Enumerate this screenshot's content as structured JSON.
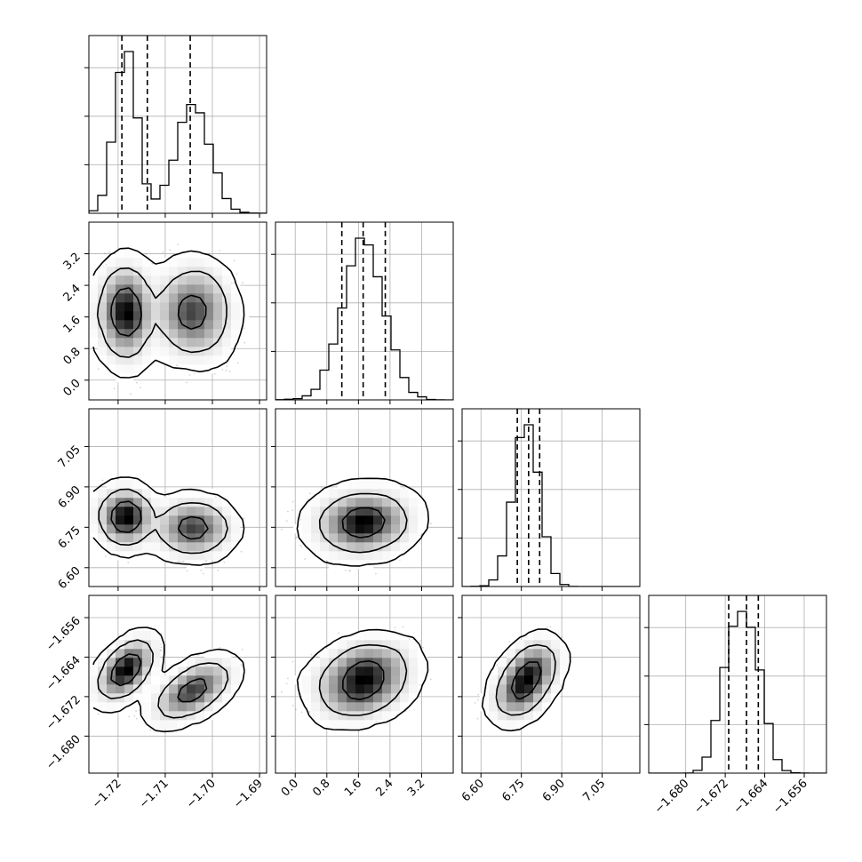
{
  "chart_data": {
    "type": "corner",
    "grid": true,
    "colors": {
      "points": "#555555",
      "lines": "#000000",
      "grid": "#b0b0b0",
      "density_max": "#000000"
    },
    "parameters": [
      {
        "range": [
          -1.7262,
          -1.6885
        ],
        "ticks": [
          -1.72,
          -1.71,
          -1.7,
          -1.69
        ],
        "tick_labels": [
          "−1.72",
          "−1.71",
          "−1.70",
          "−1.69"
        ],
        "quantiles": [
          -1.7192,
          -1.7138,
          -1.7047
        ],
        "components": [
          {
            "weight": 0.5,
            "mean": -1.7183,
            "sd": 0.0023
          },
          {
            "weight": 0.5,
            "mean": -1.7041,
            "sd": 0.0035
          }
        ]
      },
      {
        "range": [
          -0.5,
          4.0
        ],
        "ticks": [
          0.0,
          0.8,
          1.6,
          2.4,
          3.2
        ],
        "tick_labels": [
          "0.0",
          "0.8",
          "1.6",
          "2.4",
          "3.2"
        ],
        "quantiles": [
          1.18,
          1.72,
          2.28
        ],
        "components": [
          {
            "weight": 1.0,
            "mean": 1.72,
            "sd": 0.52
          }
        ]
      },
      {
        "range": [
          6.53,
          7.19
        ],
        "ticks": [
          6.6,
          6.75,
          6.9,
          7.05
        ],
        "tick_labels": [
          "6.60",
          "6.75",
          "6.90",
          "7.05"
        ],
        "quantiles": [
          6.735,
          6.777,
          6.818
        ],
        "components": [
          {
            "weight": 1.0,
            "mean": 6.777,
            "sd": 0.042
          }
        ]
      },
      {
        "range": [
          -1.6875,
          -1.6515
        ],
        "ticks": [
          -1.68,
          -1.672,
          -1.664,
          -1.656
        ],
        "tick_labels": [
          "−1.680",
          "−1.672",
          "−1.664",
          "−1.656"
        ],
        "quantiles": [
          -1.6713,
          -1.6677,
          -1.6653
        ],
        "components": [
          {
            "weight": 1.0,
            "mean": -1.6683,
            "sd": 0.0029
          }
        ]
      }
    ],
    "correlations": {
      "0-1": [
        0.0,
        0.0
      ],
      "0-2": [
        0.0,
        0.0
      ],
      "0-3": [
        0.65,
        0.65
      ],
      "1-2": [
        0.1
      ],
      "1-3": [
        0.35
      ],
      "2-3": [
        0.35
      ]
    },
    "pair_offsets": {
      "0-1": [
        [
          0,
          0
        ],
        [
          0,
          0
        ]
      ],
      "0-2": [
        [
          0,
          0.012
        ],
        [
          0,
          -0.03
        ]
      ],
      "0-3": [
        [
          0,
          0.0018
        ],
        [
          0,
          -0.0025
        ]
      ]
    },
    "bins": 20,
    "contour_levels": [
      0.393,
      0.865,
      0.989
    ],
    "samples_per_component": 6000
  }
}
